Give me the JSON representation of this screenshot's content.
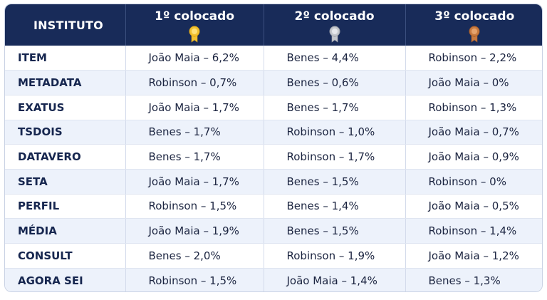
{
  "header": {
    "institute": "INSTITUTO",
    "places": [
      {
        "label": "1º colocado",
        "medal": "gold-medal-icon",
        "color": "#f2c230"
      },
      {
        "label": "2º colocado",
        "medal": "silver-medal-icon",
        "color": "#c3c6cc"
      },
      {
        "label": "3º colocado",
        "medal": "bronze-medal-icon",
        "color": "#c97a40"
      }
    ]
  },
  "rows": [
    {
      "institute": "ITEM",
      "first": "João Maia – 6,2%",
      "second": "Benes – 4,4%",
      "third": "Robinson – 2,2%"
    },
    {
      "institute": "METADATA",
      "first": "Robinson – 0,7%",
      "second": "Benes – 0,6%",
      "third": "João Maia – 0%"
    },
    {
      "institute": "EXATUS",
      "first": "João Maia – 1,7%",
      "second": "Benes – 1,7%",
      "third": "Robinson – 1,3%"
    },
    {
      "institute": "TSDOIS",
      "first": "Benes – 1,7%",
      "second": "Robinson – 1,0%",
      "third": "João Maia – 0,7%"
    },
    {
      "institute": "DATAVERO",
      "first": "Benes – 1,7%",
      "second": "Robinson – 1,7%",
      "third": "João Maia – 0,9%"
    },
    {
      "institute": "SETA",
      "first": "João Maia – 1,7%",
      "second": "Benes – 1,5%",
      "third": "Robinson – 0%"
    },
    {
      "institute": "PERFIL",
      "first": "Robinson – 1,5%",
      "second": "Benes – 1,4%",
      "third": "João Maia – 0,5%"
    },
    {
      "institute": "MÉDIA",
      "first": "João Maia – 1,9%",
      "second": "Benes – 1,5%",
      "third": "Robinson – 1,4%"
    },
    {
      "institute": "CONSULT",
      "first": "Benes – 2,0%",
      "second": "Robinson – 1,9%",
      "third": "João Maia – 1,2%"
    },
    {
      "institute": "AGORA SEI",
      "first": "Robinson – 1,5%",
      "second": "João Maia – 1,4%",
      "third": "Benes – 1,3%"
    }
  ]
}
